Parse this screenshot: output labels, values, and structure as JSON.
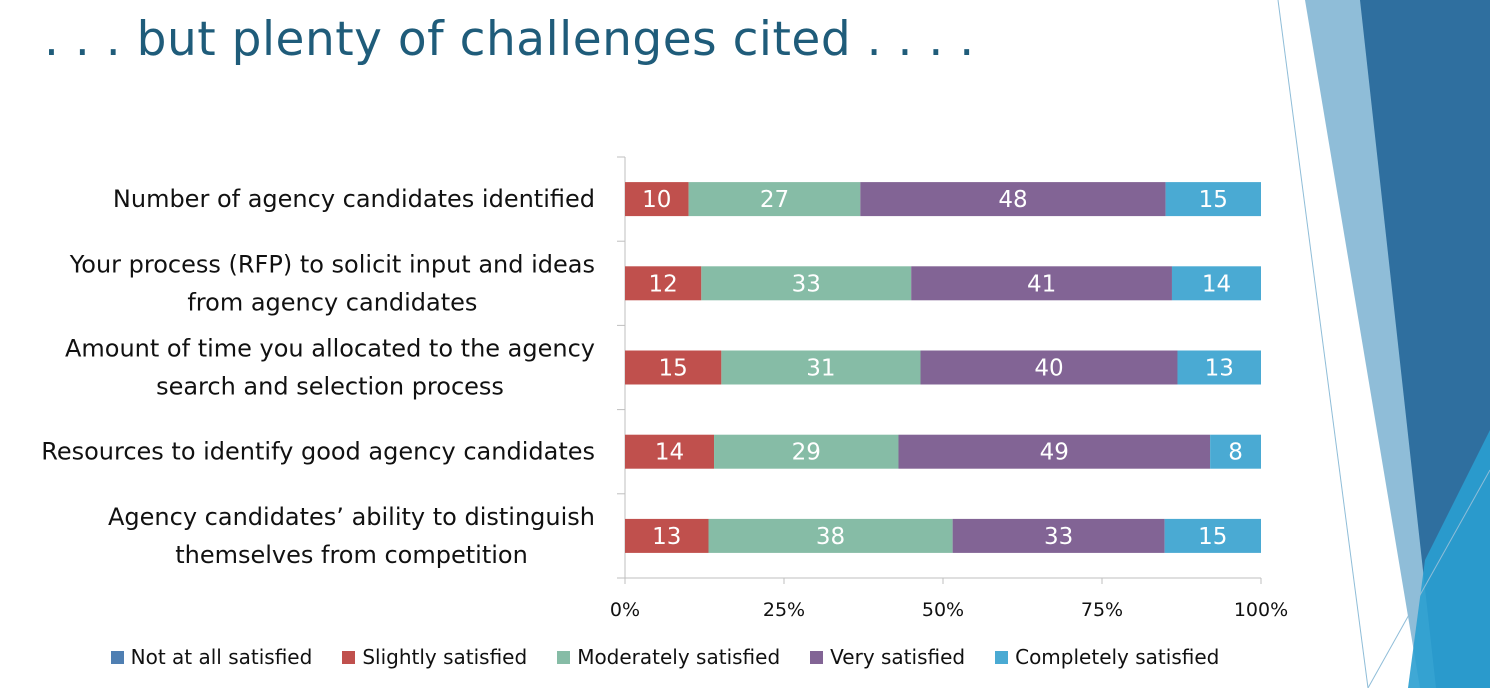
{
  "slide": {
    "title": ". . . but plenty of challenges cited . . . ."
  },
  "colors": {
    "title": "#1f5c7a",
    "decoration_dark": "#2f6f9f",
    "decoration_light": "#8fbdd8",
    "decoration_cyan": "#2a9fd0"
  },
  "chart_data": {
    "type": "bar",
    "orientation": "horizontal",
    "stacked": "percent",
    "categories": [
      [
        "Number of agency candidates identified"
      ],
      [
        "Your process (RFP) to solicit input and ideas",
        "from agency candidates"
      ],
      [
        "Amount of time you allocated to the agency",
        "search and selection process"
      ],
      [
        "Resources to identify good agency candidates"
      ],
      [
        "Agency candidates’ ability to distinguish",
        "themselves from competition"
      ]
    ],
    "series": [
      {
        "name": "Not at all satisfied",
        "color": "#4f7fb2",
        "values": [
          0,
          0,
          0,
          0,
          0
        ]
      },
      {
        "name": "Slightly satisfied",
        "color": "#c0504d",
        "values": [
          10,
          12,
          15,
          14,
          13
        ]
      },
      {
        "name": "Moderately satisfied",
        "color": "#86bca6",
        "values": [
          27,
          33,
          31,
          29,
          38
        ]
      },
      {
        "name": "Very satisfied",
        "color": "#826495",
        "values": [
          48,
          41,
          40,
          49,
          33
        ]
      },
      {
        "name": "Completely satisfied",
        "color": "#4aaad3",
        "values": [
          15,
          14,
          13,
          8,
          15
        ]
      }
    ],
    "xlim": [
      0,
      100
    ],
    "xticks": [
      "0%",
      "25%",
      "50%",
      "75%",
      "100%"
    ],
    "legend_position": "bottom",
    "grid": false
  }
}
